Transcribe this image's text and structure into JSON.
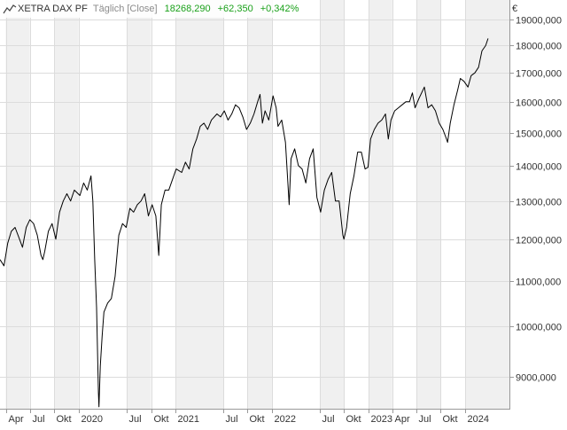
{
  "header": {
    "instrument": "XETRA DAX PF",
    "mode": "Täglich [Close]",
    "last": "18268,290",
    "change": "+62,350",
    "change_pct": "+0,342%"
  },
  "currency_symbol": "€",
  "colors": {
    "line": "#000000",
    "positive": "#1aa11a",
    "band": "#f0f0f0",
    "grid": "#dcdcdc",
    "text": "#333333"
  },
  "chart_data": {
    "type": "line",
    "title": "",
    "scale": "log",
    "ylim": [
      8400,
      19800
    ],
    "xlim": [
      "2019-03-10",
      "2024-06-20"
    ],
    "y_ticks": [
      {
        "value": 9000,
        "label": "9000,000"
      },
      {
        "value": 10000,
        "label": "10000,000"
      },
      {
        "value": 11000,
        "label": "11000,000"
      },
      {
        "value": 12000,
        "label": "12000,000"
      },
      {
        "value": 13000,
        "label": "13000,000"
      },
      {
        "value": 14000,
        "label": "14000,000"
      },
      {
        "value": 15000,
        "label": "15000,000"
      },
      {
        "value": 16000,
        "label": "16000,000"
      },
      {
        "value": 17000,
        "label": "17000,000"
      },
      {
        "value": 18000,
        "label": "18000,000"
      },
      {
        "value": 19000,
        "label": "19000,000"
      }
    ],
    "x_ticks": [
      {
        "date": "2019-04-01",
        "label": "Apr"
      },
      {
        "date": "2019-07-01",
        "label": "Jul"
      },
      {
        "date": "2019-10-01",
        "label": "Okt"
      },
      {
        "date": "2020-01-01",
        "label": "2020"
      },
      {
        "date": "2020-07-01",
        "label": "Jul"
      },
      {
        "date": "2020-10-01",
        "label": "Okt"
      },
      {
        "date": "2021-01-01",
        "label": "2021"
      },
      {
        "date": "2021-07-01",
        "label": "Jul"
      },
      {
        "date": "2021-10-01",
        "label": "Okt"
      },
      {
        "date": "2022-01-01",
        "label": "2022"
      },
      {
        "date": "2022-07-01",
        "label": "Jul"
      },
      {
        "date": "2022-10-01",
        "label": "Okt"
      },
      {
        "date": "2023-01-01",
        "label": "2023"
      },
      {
        "date": "2023-04-01",
        "label": "Apr"
      },
      {
        "date": "2023-07-01",
        "label": "Jul"
      },
      {
        "date": "2023-10-01",
        "label": "Okt"
      },
      {
        "date": "2024-01-01",
        "label": "2024"
      }
    ],
    "series": [
      {
        "points": [
          [
            "2019-03-10",
            11500
          ],
          [
            "2019-03-25",
            11350
          ],
          [
            "2019-04-08",
            11900
          ],
          [
            "2019-04-22",
            12200
          ],
          [
            "2019-05-06",
            12300
          ],
          [
            "2019-05-20",
            12050
          ],
          [
            "2019-06-03",
            11800
          ],
          [
            "2019-06-17",
            12300
          ],
          [
            "2019-07-01",
            12500
          ],
          [
            "2019-07-15",
            12400
          ],
          [
            "2019-07-29",
            12100
          ],
          [
            "2019-08-12",
            11600
          ],
          [
            "2019-08-19",
            11500
          ],
          [
            "2019-08-26",
            11700
          ],
          [
            "2019-09-09",
            12200
          ],
          [
            "2019-09-23",
            12400
          ],
          [
            "2019-10-07",
            12000
          ],
          [
            "2019-10-21",
            12700
          ],
          [
            "2019-11-04",
            13000
          ],
          [
            "2019-11-18",
            13200
          ],
          [
            "2019-12-02",
            13000
          ],
          [
            "2019-12-16",
            13300
          ],
          [
            "2020-01-06",
            13150
          ],
          [
            "2020-01-20",
            13500
          ],
          [
            "2020-02-03",
            13300
          ],
          [
            "2020-02-17",
            13700
          ],
          [
            "2020-02-24",
            13000
          ],
          [
            "2020-03-02",
            11500
          ],
          [
            "2020-03-09",
            10400
          ],
          [
            "2020-03-16",
            8700
          ],
          [
            "2020-03-18",
            8450
          ],
          [
            "2020-03-23",
            9200
          ],
          [
            "2020-03-30",
            9800
          ],
          [
            "2020-04-06",
            10300
          ],
          [
            "2020-04-20",
            10500
          ],
          [
            "2020-05-04",
            10600
          ],
          [
            "2020-05-18",
            11100
          ],
          [
            "2020-06-01",
            12100
          ],
          [
            "2020-06-15",
            12400
          ],
          [
            "2020-06-29",
            12300
          ],
          [
            "2020-07-13",
            12800
          ],
          [
            "2020-07-27",
            12700
          ],
          [
            "2020-08-10",
            12900
          ],
          [
            "2020-08-24",
            13000
          ],
          [
            "2020-09-07",
            13200
          ],
          [
            "2020-09-21",
            12600
          ],
          [
            "2020-10-05",
            12900
          ],
          [
            "2020-10-19",
            12600
          ],
          [
            "2020-10-30",
            11600
          ],
          [
            "2020-11-09",
            12900
          ],
          [
            "2020-11-23",
            13300
          ],
          [
            "2020-12-07",
            13300
          ],
          [
            "2020-12-21",
            13600
          ],
          [
            "2021-01-04",
            13900
          ],
          [
            "2021-01-25",
            13800
          ],
          [
            "2021-02-08",
            14100
          ],
          [
            "2021-02-22",
            13900
          ],
          [
            "2021-03-08",
            14500
          ],
          [
            "2021-03-22",
            14800
          ],
          [
            "2021-04-05",
            15200
          ],
          [
            "2021-04-19",
            15300
          ],
          [
            "2021-05-03",
            15100
          ],
          [
            "2021-05-17",
            15400
          ],
          [
            "2021-06-07",
            15600
          ],
          [
            "2021-06-21",
            15500
          ],
          [
            "2021-07-05",
            15700
          ],
          [
            "2021-07-19",
            15400
          ],
          [
            "2021-08-02",
            15600
          ],
          [
            "2021-08-16",
            15900
          ],
          [
            "2021-08-30",
            15800
          ],
          [
            "2021-09-13",
            15500
          ],
          [
            "2021-09-27",
            15100
          ],
          [
            "2021-10-11",
            15300
          ],
          [
            "2021-10-25",
            15600
          ],
          [
            "2021-11-08",
            16000
          ],
          [
            "2021-11-17",
            16250
          ],
          [
            "2021-11-26",
            15300
          ],
          [
            "2021-12-06",
            15700
          ],
          [
            "2021-12-20",
            15400
          ],
          [
            "2022-01-05",
            16200
          ],
          [
            "2022-01-17",
            15800
          ],
          [
            "2022-01-24",
            15200
          ],
          [
            "2022-02-07",
            15400
          ],
          [
            "2022-02-21",
            14700
          ],
          [
            "2022-03-07",
            12900
          ],
          [
            "2022-03-14",
            14200
          ],
          [
            "2022-03-28",
            14500
          ],
          [
            "2022-04-11",
            14000
          ],
          [
            "2022-04-25",
            13900
          ],
          [
            "2022-05-09",
            13500
          ],
          [
            "2022-05-23",
            14200
          ],
          [
            "2022-06-06",
            14500
          ],
          [
            "2022-06-20",
            13100
          ],
          [
            "2022-07-04",
            12700
          ],
          [
            "2022-07-18",
            13300
          ],
          [
            "2022-08-01",
            13600
          ],
          [
            "2022-08-15",
            13800
          ],
          [
            "2022-08-29",
            13000
          ],
          [
            "2022-09-12",
            13000
          ],
          [
            "2022-09-26",
            12100
          ],
          [
            "2022-09-30",
            12000
          ],
          [
            "2022-10-10",
            12300
          ],
          [
            "2022-10-24",
            13200
          ],
          [
            "2022-11-07",
            13700
          ],
          [
            "2022-11-21",
            14400
          ],
          [
            "2022-12-05",
            14400
          ],
          [
            "2022-12-19",
            13900
          ],
          [
            "2022-12-30",
            13950
          ],
          [
            "2023-01-09",
            14800
          ],
          [
            "2023-01-23",
            15100
          ],
          [
            "2023-02-06",
            15300
          ],
          [
            "2023-02-20",
            15400
          ],
          [
            "2023-03-06",
            15600
          ],
          [
            "2023-03-17",
            14800
          ],
          [
            "2023-03-27",
            15400
          ],
          [
            "2023-04-10",
            15700
          ],
          [
            "2023-04-24",
            15800
          ],
          [
            "2023-05-08",
            15900
          ],
          [
            "2023-05-22",
            16000
          ],
          [
            "2023-06-05",
            16000
          ],
          [
            "2023-06-16",
            16300
          ],
          [
            "2023-06-26",
            15800
          ],
          [
            "2023-07-10",
            16100
          ],
          [
            "2023-07-31",
            16500
          ],
          [
            "2023-08-14",
            15800
          ],
          [
            "2023-08-28",
            15900
          ],
          [
            "2023-09-11",
            15700
          ],
          [
            "2023-09-25",
            15300
          ],
          [
            "2023-10-09",
            15100
          ],
          [
            "2023-10-23",
            14800
          ],
          [
            "2023-10-27",
            14700
          ],
          [
            "2023-11-06",
            15300
          ],
          [
            "2023-11-20",
            15900
          ],
          [
            "2023-12-04",
            16400
          ],
          [
            "2023-12-14",
            16800
          ],
          [
            "2023-12-28",
            16700
          ],
          [
            "2024-01-12",
            16500
          ],
          [
            "2024-01-24",
            16900
          ],
          [
            "2024-02-07",
            17000
          ],
          [
            "2024-02-21",
            17200
          ],
          [
            "2024-03-05",
            17800
          ],
          [
            "2024-03-19",
            18000
          ],
          [
            "2024-03-28",
            18268
          ]
        ]
      }
    ]
  }
}
